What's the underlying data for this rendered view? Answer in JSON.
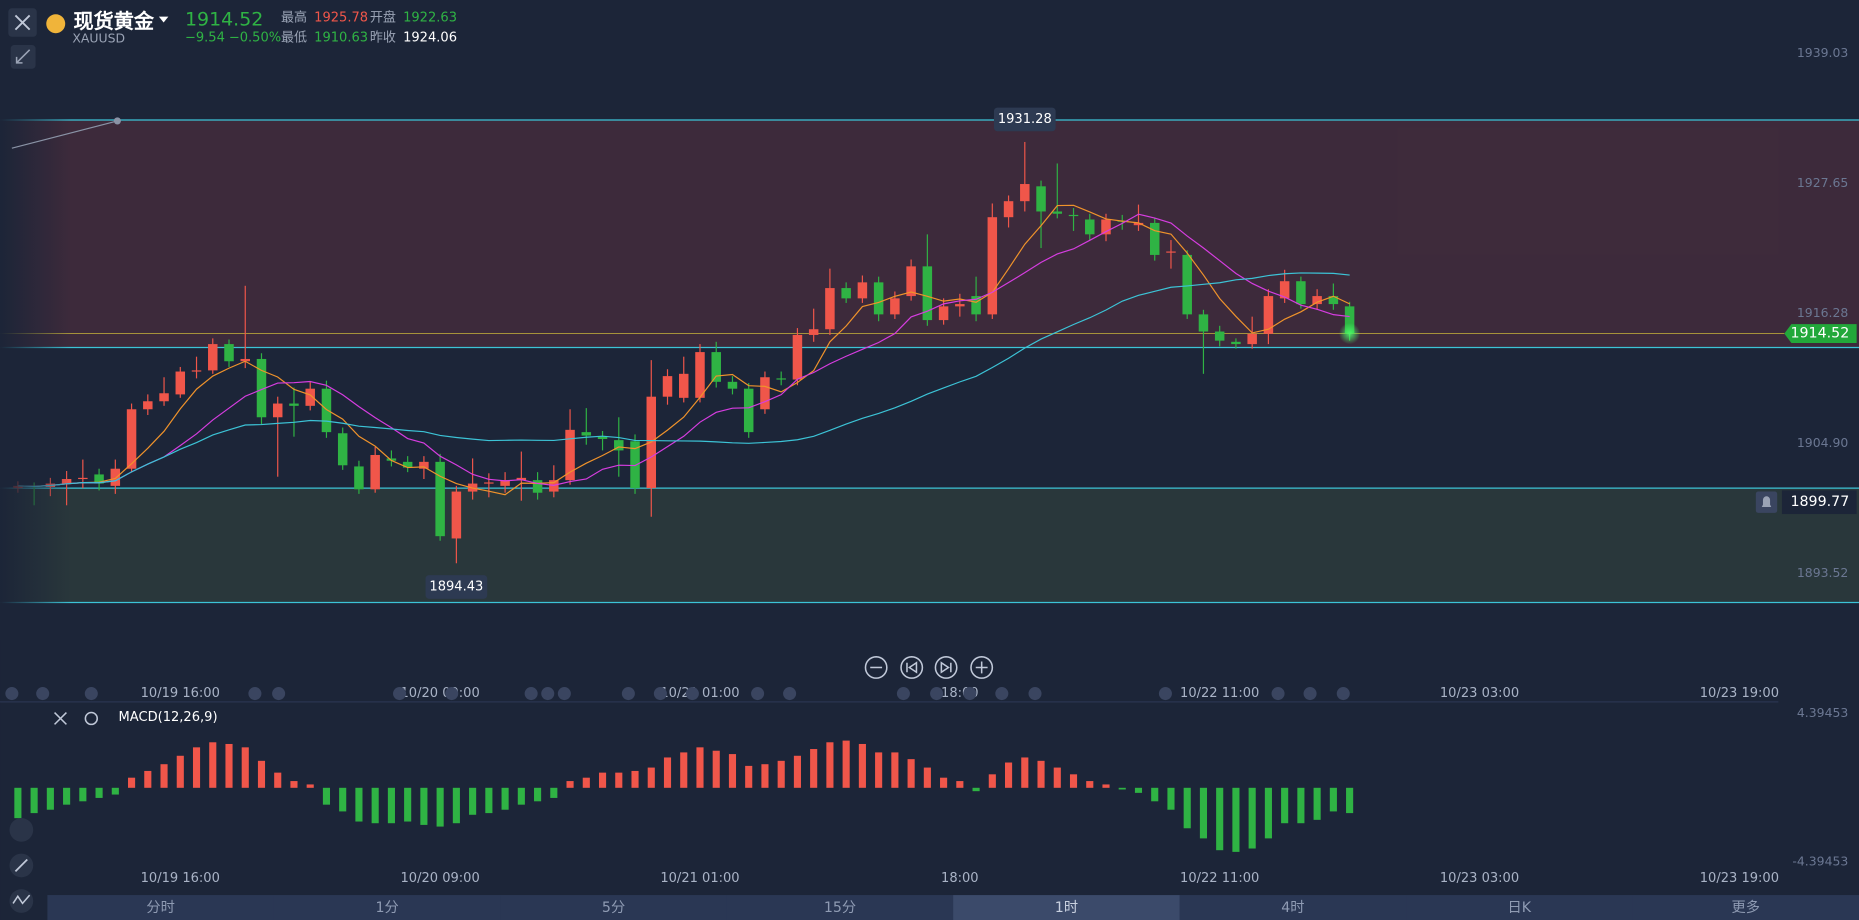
{
  "header": {
    "name": "现货黄金",
    "symbol": "XAUUSD",
    "price": "1914.52",
    "change": "−9.54",
    "change_pct": "−0.50%",
    "stats": [
      {
        "label": "最高",
        "value": "1925.78"
      },
      {
        "label": "开盘",
        "value": "1922.63"
      },
      {
        "label": "最低",
        "value": "1910.63"
      },
      {
        "label": "昨收",
        "value": "1924.06"
      }
    ]
  },
  "chart_data": [
    {
      "type": "candlestick",
      "open": [
        1901.0,
        1901.2,
        1901.1,
        1901.4,
        1901.8,
        1902.2,
        1901.2,
        1902.7,
        1907.9,
        1908.6,
        1909.2,
        1911.2,
        1911.3,
        1913.6,
        1912.1,
        1912.3,
        1907.2,
        1908.4,
        1908.2,
        1909.7,
        1905.8,
        1902.9,
        1900.9,
        1903.6,
        1903.3,
        1902.7,
        1903.3,
        1896.6,
        1900.7,
        1901.4,
        1901.2,
        1901.7,
        1901.7,
        1900.7,
        1901.7,
        1905.9,
        1905.5,
        1905.2,
        1905.1,
        1901.0,
        1909.0,
        1908.9,
        1908.9,
        1912.9,
        1910.3,
        1909.7,
        1907.9,
        1910.6,
        1910.5,
        1914.4,
        1914.9,
        1918.5,
        1917.6,
        1919.0,
        1916.2,
        1917.8,
        1920.4,
        1915.7,
        1916.9,
        1917.8,
        1916.2,
        1924.7,
        1926.1,
        1927.4,
        1925.2,
        1924.9,
        1924.5,
        1923.2,
        1924.4,
        1924.0,
        1924.2,
        1921.6,
        1921.4,
        1916.2,
        1914.7,
        1913.8,
        1913.6,
        1914.5,
        1917.6,
        1919.1,
        1917.1,
        1917.8,
        1916.9
      ],
      "high": [
        1901.6,
        1901.5,
        1901.9,
        1902.5,
        1903.5,
        1902.7,
        1903.5,
        1908.4,
        1909.2,
        1910.7,
        1911.6,
        1912.5,
        1914.1,
        1914.0,
        1918.7,
        1912.8,
        1909.0,
        1909.8,
        1910.3,
        1910.4,
        1906.3,
        1903.4,
        1904.6,
        1904.3,
        1903.8,
        1903.8,
        1904.0,
        1901.2,
        1903.6,
        1902.3,
        1902.4,
        1904.2,
        1902.4,
        1903.0,
        1907.9,
        1908.0,
        1906.0,
        1907.2,
        1905.7,
        1912.2,
        1911.4,
        1912.5,
        1913.6,
        1913.8,
        1910.8,
        1910.2,
        1911.2,
        1911.2,
        1915.0,
        1916.7,
        1920.2,
        1919.0,
        1919.6,
        1919.5,
        1918.2,
        1921.0,
        1923.2,
        1917.6,
        1918.0,
        1919.5,
        1925.9,
        1926.6,
        1931.28,
        1927.9,
        1929.4,
        1925.5,
        1925.0,
        1925.0,
        1924.9,
        1925.8,
        1924.6,
        1922.7,
        1921.8,
        1916.6,
        1915.2,
        1914.1,
        1916.0,
        1918.4,
        1920.1,
        1919.5,
        1918.4,
        1918.9,
        1917.3
      ],
      "low": [
        1900.6,
        1899.5,
        1900.3,
        1899.5,
        1901.0,
        1900.8,
        1900.5,
        1902.4,
        1907.4,
        1908.2,
        1908.9,
        1910.6,
        1911.0,
        1911.6,
        1911.5,
        1906.6,
        1902.0,
        1905.5,
        1907.8,
        1905.4,
        1902.6,
        1900.5,
        1900.6,
        1902.9,
        1902.4,
        1901.8,
        1896.4,
        1894.43,
        1900.0,
        1900.2,
        1900.6,
        1899.9,
        1900.0,
        1900.2,
        1901.3,
        1904.8,
        1904.3,
        1902.0,
        1900.5,
        1898.5,
        1908.3,
        1908.5,
        1908.5,
        1909.8,
        1909.2,
        1905.4,
        1907.5,
        1910.0,
        1910.0,
        1913.8,
        1914.4,
        1917.2,
        1917.2,
        1915.6,
        1915.8,
        1917.4,
        1915.2,
        1915.3,
        1916.0,
        1915.6,
        1915.8,
        1923.8,
        1925.2,
        1922.0,
        1924.6,
        1923.5,
        1922.7,
        1922.6,
        1923.6,
        1923.5,
        1920.9,
        1920.2,
        1915.8,
        1911.0,
        1913.4,
        1913.2,
        1913.2,
        1913.6,
        1917.2,
        1916.7,
        1916.6,
        1916.6,
        1913.9
      ],
      "close": [
        1901.2,
        1901.1,
        1901.4,
        1901.8,
        1901.9,
        1901.4,
        1902.7,
        1907.9,
        1908.6,
        1909.3,
        1911.2,
        1911.3,
        1913.6,
        1912.1,
        1912.3,
        1907.2,
        1908.4,
        1908.2,
        1909.7,
        1905.9,
        1903.0,
        1900.9,
        1903.9,
        1903.4,
        1902.8,
        1903.3,
        1896.8,
        1900.7,
        1901.4,
        1901.5,
        1901.7,
        1901.9,
        1900.6,
        1901.7,
        1906.1,
        1905.6,
        1905.3,
        1904.3,
        1901.0,
        1909.0,
        1910.8,
        1911.0,
        1912.9,
        1910.3,
        1909.7,
        1905.9,
        1910.7,
        1910.5,
        1914.4,
        1914.9,
        1918.5,
        1917.6,
        1919.0,
        1916.2,
        1917.6,
        1920.4,
        1915.7,
        1916.9,
        1917.1,
        1916.2,
        1924.7,
        1926.1,
        1927.6,
        1925.2,
        1925.0,
        1924.8,
        1923.2,
        1924.5,
        1924.3,
        1924.2,
        1921.4,
        1921.7,
        1916.2,
        1914.7,
        1913.9,
        1913.6,
        1914.5,
        1917.8,
        1919.1,
        1917.1,
        1917.8,
        1917.1,
        1914.52
      ],
      "up_color": "#f0564a",
      "down_color": "#2fb344",
      "moving_averages": [
        {
          "period": 5,
          "color": "#f0932b"
        },
        {
          "period": 10,
          "color": "#d63de0"
        },
        {
          "period": 30,
          "color": "#3cc3d6"
        }
      ],
      "xlim": [
        -1.1,
        108.4
      ],
      "xticks": [
        {
          "value": 10,
          "label": "10/19 16:00"
        },
        {
          "value": 26,
          "label": "10/20 09:00"
        },
        {
          "value": 42,
          "label": "10/21 01:00"
        },
        {
          "value": 58,
          "label": "18:00"
        },
        {
          "value": 74,
          "label": "10/22 11:00"
        },
        {
          "value": 90,
          "label": "10/23 03:00"
        },
        {
          "value": 106,
          "label": "10/23 19:00"
        }
      ],
      "ylim": [
        1887.7,
        1942.66
      ],
      "yticks": [
        1939.03,
        1927.65,
        1916.28,
        {
          "value": 1904.9,
          "label": "1904.90"
        },
        1893.52
      ],
      "zones": [
        {
          "from": 1933.2,
          "to": 1913.3,
          "color": "#5a2f3e"
        },
        {
          "from": 1901.0,
          "to": 1891.0,
          "color": "#34473e"
        }
      ],
      "level_color": "#3cc3d6",
      "alert": 1899.77
    },
    {
      "type": "bar",
      "title": "MACD(12,26,9)",
      "values": [
        -1.8,
        -1.5,
        -1.3,
        -1.0,
        -0.8,
        -0.6,
        -0.4,
        0.6,
        1.0,
        1.4,
        1.9,
        2.4,
        2.7,
        2.6,
        2.4,
        1.6,
        0.9,
        0.4,
        0.2,
        -1.0,
        -1.4,
        -2.0,
        -2.1,
        -2.1,
        -2.0,
        -2.2,
        -2.3,
        -2.1,
        -1.6,
        -1.5,
        -1.3,
        -1.0,
        -0.8,
        -0.6,
        0.4,
        0.6,
        0.9,
        0.9,
        1.0,
        1.2,
        1.8,
        2.1,
        2.4,
        2.2,
        2.0,
        1.3,
        1.4,
        1.6,
        1.9,
        2.3,
        2.7,
        2.8,
        2.6,
        2.1,
        2.1,
        1.7,
        1.2,
        0.6,
        0.4,
        -0.2,
        0.8,
        1.5,
        1.8,
        1.6,
        1.2,
        0.8,
        0.4,
        0.2,
        -0.1,
        -0.3,
        -0.8,
        -1.3,
        -2.4,
        -3.0,
        -3.7,
        -3.8,
        -3.6,
        -3.0,
        -2.1,
        -2.1,
        -1.9,
        -1.4,
        -1.5
      ],
      "up_color": "#f0564a",
      "down_color": "#2fb344",
      "xlim": [
        -1.1,
        108.4
      ],
      "xticks": [
        {
          "value": 10,
          "label": "10/19 16:00"
        },
        {
          "value": 26,
          "label": "10/20 09:00"
        },
        {
          "value": 42,
          "label": "10/21 01:00"
        },
        {
          "value": 58,
          "label": "18:00"
        },
        {
          "value": 74,
          "label": "10/22 11:00"
        },
        {
          "value": 90,
          "label": "10/23 03:00"
        },
        {
          "value": 106,
          "label": "10/23 19:00"
        }
      ],
      "ylim": [
        -4.39453,
        4.39453
      ],
      "yticks": [
        4.39453,
        -4.39453
      ]
    }
  ],
  "timeframes": [
    "分时",
    "1分",
    "5分",
    "15分",
    "1时",
    "4时",
    "日K",
    "更多"
  ],
  "selected_timeframe": 4
}
